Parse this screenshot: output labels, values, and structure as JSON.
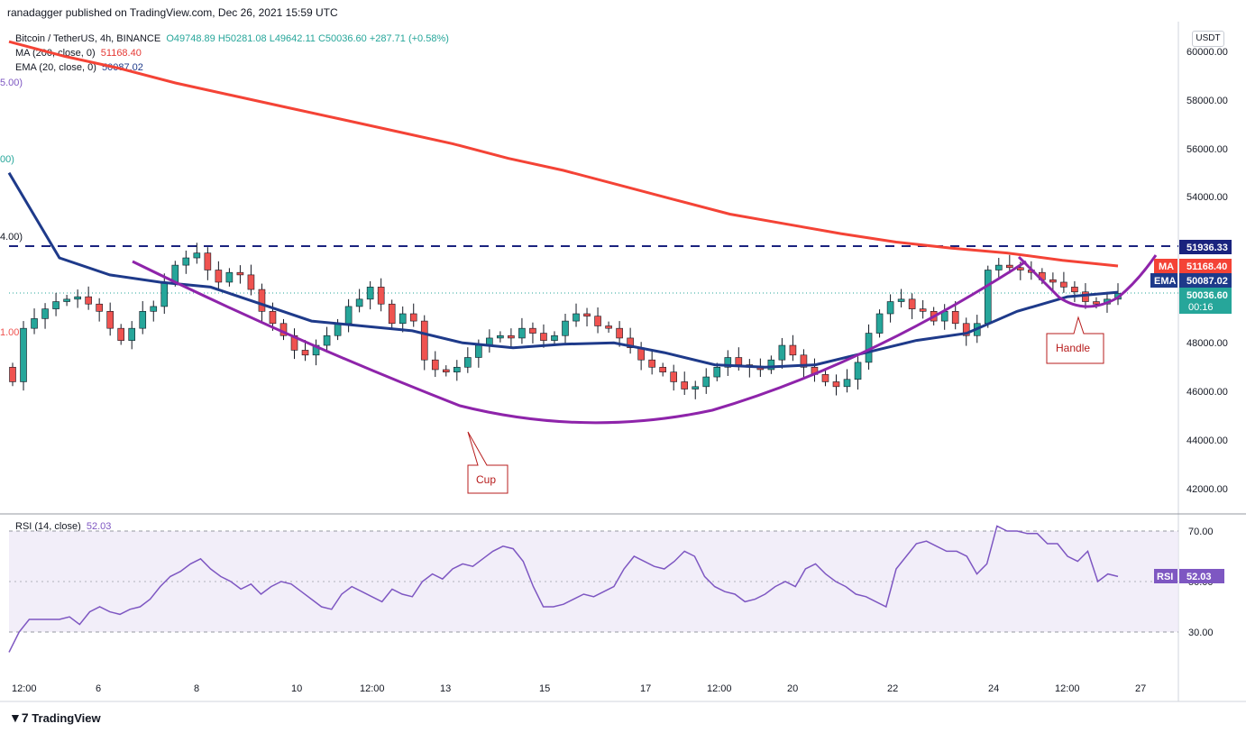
{
  "header": {
    "published": "ranadagger published on TradingView.com, Dec 26, 2021 15:59 UTC"
  },
  "legend": {
    "symbol": "Bitcoin / TetherUS, 4h, BINANCE",
    "ohlc": "O49748.89  H50281.08  L49642.11  C50036.60  +287.71 (+0.58%)",
    "ma_label": "MA (200, close, 0)",
    "ma_value": "51168.40",
    "ema_label": "EMA (20, close, 0)",
    "ema_value": "50087.02"
  },
  "cut_labels": {
    "a": "5.00)",
    "b": "00)",
    "c": "4.00)",
    "d": "1.00"
  },
  "currency": "USDT",
  "price_axis": {
    "ticks": [
      "60000.00",
      "58000.00",
      "56000.00",
      "54000.00",
      "48000.00",
      "46000.00",
      "44000.00",
      "42000.00"
    ],
    "resistance_label": "51936.33",
    "ma_badge_tag": "MA",
    "ma_badge_value": "51168.40",
    "ema_badge_tag": "EMA",
    "ema_badge_value": "50087.02",
    "last_price": "50036.60",
    "countdown": "00:16"
  },
  "time_axis": {
    "ticks": [
      "12:00",
      "6",
      "8",
      "10",
      "12:00",
      "13",
      "15",
      "17",
      "12:00",
      "20",
      "22",
      "24",
      "12:00",
      "27"
    ]
  },
  "annotations": {
    "cup": "Cup",
    "handle": "Handle"
  },
  "rsi": {
    "label": "RSI (14, close)",
    "value": "52.03",
    "badge_tag": "RSI",
    "badge_value": "52.03",
    "ticks": [
      "70.00",
      "30.00"
    ],
    "mid_tick": "50.00"
  },
  "footer": {
    "brand": "TradingView"
  },
  "colors": {
    "up": "#26a69a",
    "down": "#ef5350",
    "ma": "#f44336",
    "ema": "#1e3a8a",
    "pattern": "#8e24aa",
    "rsi": "#7e57c2",
    "resistance": "#1a237e"
  },
  "chart_data": {
    "type": "candlestick",
    "symbol": "Bitcoin / TetherUS",
    "interval": "4h",
    "ylim": [
      41000,
      61000
    ],
    "resistance": 51936.33,
    "series": [
      {
        "name": "MA (200, close, 0)",
        "values": [
          60400,
          59800,
          59300,
          58700,
          58200,
          57700,
          57200,
          56700,
          56200,
          55600,
          55100,
          54500,
          53900,
          53300,
          52900,
          52500,
          52150,
          51900,
          51700,
          51400,
          51168
        ]
      },
      {
        "name": "EMA (20, close, 0)",
        "values": [
          55000,
          51500,
          50800,
          50500,
          50300,
          49600,
          48900,
          48700,
          48500,
          48000,
          47800,
          47950,
          48000,
          47600,
          47100,
          47000,
          47100,
          47600,
          48100,
          48400,
          49300,
          49900,
          50087
        ]
      }
    ],
    "closes": [
      46400,
      48600,
      49000,
      49400,
      49700,
      49800,
      49900,
      49600,
      49300,
      48600,
      48100,
      48600,
      49300,
      49500,
      50500,
      51200,
      51500,
      51700,
      51000,
      50500,
      50900,
      50800,
      50200,
      49300,
      48800,
      48300,
      47700,
      47500,
      47900,
      48300,
      48800,
      49500,
      49800,
      50300,
      49600,
      48800,
      49200,
      48900,
      47300,
      46900,
      46800,
      47000,
      47400,
      47900,
      48200,
      48300,
      48200,
      48600,
      48400,
      48100,
      48300,
      48900,
      49200,
      49100,
      48700,
      48600,
      48200,
      47800,
      47300,
      47000,
      46800,
      46400,
      46100,
      46200,
      46600,
      47000,
      47400,
      47100,
      47000,
      46900,
      47300,
      47900,
      47500,
      47000,
      46700,
      46400,
      46200,
      46500,
      47200,
      48400,
      49200,
      49700,
      49800,
      49400,
      49300,
      48900,
      49300,
      48800,
      48300,
      48800,
      51000,
      51200,
      51100,
      51000,
      50900,
      50600,
      50500,
      50300,
      50100,
      49700,
      49600,
      49800,
      50036
    ]
  }
}
